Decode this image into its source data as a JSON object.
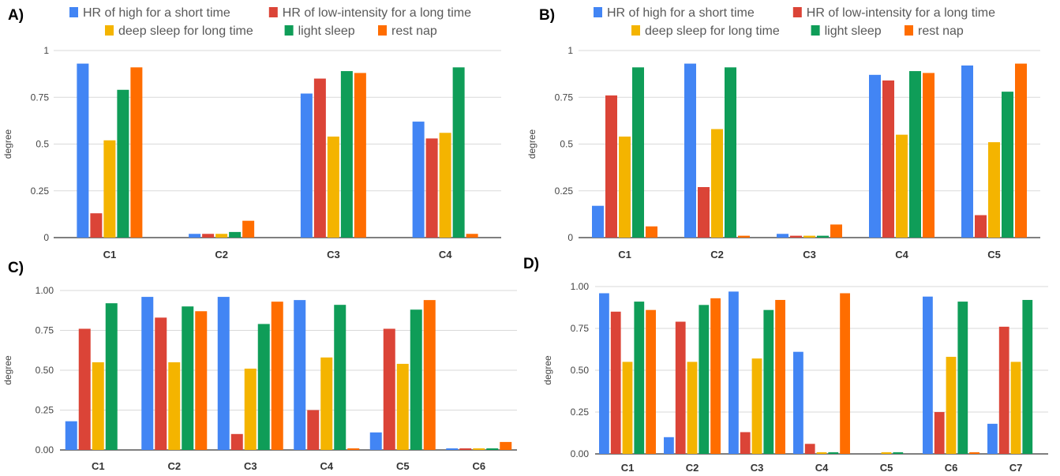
{
  "legend": {
    "items": [
      {
        "name": "HR of high for a short time",
        "color": "#4285F4"
      },
      {
        "name": "HR of low-intensity for a long time",
        "color": "#DB4437"
      },
      {
        "name": "deep sleep for long time",
        "color": "#F4B400"
      },
      {
        "name": "light sleep",
        "color": "#0F9D58"
      },
      {
        "name": "rest nap",
        "color": "#FF6D00"
      }
    ]
  },
  "chart_data": [
    {
      "panel": "A)",
      "type": "bar",
      "ylabel": "degree",
      "yticks": [
        "0",
        "0.25",
        "0.5",
        "0.75",
        "1"
      ],
      "ylim": [
        0,
        1
      ],
      "grid": true,
      "categories": [
        "C1",
        "C2",
        "C3",
        "C4"
      ],
      "series": [
        {
          "name": "HR of high for a short time",
          "values": [
            0.93,
            0.02,
            0.77,
            0.62
          ]
        },
        {
          "name": "HR of low-intensity for a long time",
          "values": [
            0.13,
            0.02,
            0.85,
            0.53
          ]
        },
        {
          "name": "deep sleep for long time",
          "values": [
            0.52,
            0.02,
            0.54,
            0.56
          ]
        },
        {
          "name": "light sleep",
          "values": [
            0.79,
            0.03,
            0.89,
            0.91
          ]
        },
        {
          "name": "rest nap",
          "values": [
            0.91,
            0.09,
            0.88,
            0.02
          ]
        }
      ]
    },
    {
      "panel": "B)",
      "type": "bar",
      "ylabel": "degree",
      "yticks": [
        "0",
        "0.25",
        "0.5",
        "0.75",
        "1"
      ],
      "ylim": [
        0,
        1
      ],
      "grid": true,
      "categories": [
        "C1",
        "C2",
        "C3",
        "C4",
        "C5"
      ],
      "series": [
        {
          "name": "HR of high for a short time",
          "values": [
            0.17,
            0.93,
            0.02,
            0.87,
            0.92
          ]
        },
        {
          "name": "HR of low-intensity for a long time",
          "values": [
            0.76,
            0.27,
            0.01,
            0.84,
            0.12
          ]
        },
        {
          "name": "deep sleep for long time",
          "values": [
            0.54,
            0.58,
            0.01,
            0.55,
            0.51
          ]
        },
        {
          "name": "light sleep",
          "values": [
            0.91,
            0.91,
            0.01,
            0.89,
            0.78
          ]
        },
        {
          "name": "rest nap",
          "values": [
            0.06,
            0.01,
            0.07,
            0.88,
            0.93
          ]
        }
      ]
    },
    {
      "panel": "C)",
      "type": "bar",
      "ylabel": "degree",
      "yticks": [
        "0.00",
        "0.25",
        "0.50",
        "0.75",
        "1.00"
      ],
      "ylim": [
        0,
        1
      ],
      "grid": true,
      "categories": [
        "C1",
        "C2",
        "C3",
        "C4",
        "C5",
        "C6"
      ],
      "series": [
        {
          "name": "HR of high for a short time",
          "values": [
            0.18,
            0.96,
            0.96,
            0.94,
            0.11,
            0.01
          ]
        },
        {
          "name": "HR of low-intensity for a long time",
          "values": [
            0.76,
            0.83,
            0.1,
            0.25,
            0.76,
            0.01
          ]
        },
        {
          "name": "deep sleep for long time",
          "values": [
            0.55,
            0.55,
            0.51,
            0.58,
            0.54,
            0.01
          ]
        },
        {
          "name": "light sleep",
          "values": [
            0.92,
            0.9,
            0.79,
            0.91,
            0.88,
            0.01
          ]
        },
        {
          "name": "rest nap",
          "values": [
            0.0,
            0.87,
            0.93,
            0.01,
            0.94,
            0.05
          ]
        }
      ]
    },
    {
      "panel": "D)",
      "type": "bar",
      "ylabel": "degree",
      "yticks": [
        "0.00",
        "0.25",
        "0.50",
        "0.75",
        "1.00"
      ],
      "ylim": [
        0,
        1
      ],
      "grid": true,
      "categories": [
        "C1",
        "C2",
        "C3",
        "C4",
        "C5",
        "C6",
        "C7"
      ],
      "series": [
        {
          "name": "HR of high for a short time",
          "values": [
            0.96,
            0.1,
            0.97,
            0.61,
            0.0,
            0.94,
            0.18
          ]
        },
        {
          "name": "HR of low-intensity for a long time",
          "values": [
            0.85,
            0.79,
            0.13,
            0.06,
            0.0,
            0.25,
            0.76
          ]
        },
        {
          "name": "deep sleep for long time",
          "values": [
            0.55,
            0.55,
            0.57,
            0.01,
            0.01,
            0.58,
            0.55
          ]
        },
        {
          "name": "light sleep",
          "values": [
            0.91,
            0.89,
            0.86,
            0.01,
            0.01,
            0.91,
            0.92
          ]
        },
        {
          "name": "rest nap",
          "values": [
            0.86,
            0.93,
            0.92,
            0.96,
            0.0,
            0.01,
            0.0
          ]
        }
      ]
    }
  ]
}
